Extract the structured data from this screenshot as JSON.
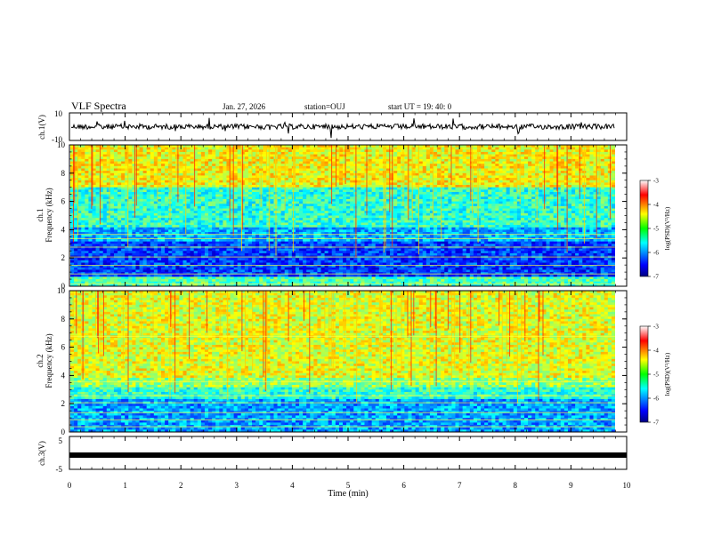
{
  "header": {
    "title": "VLF Spectra",
    "date": "Jan. 27, 2026",
    "station": "station=OUJ",
    "start_ut": "start  UT =  19: 40: 0"
  },
  "chart_data": [
    {
      "type": "line",
      "panel": "ch1-waveform",
      "ylabel": "ch.1(V)",
      "xlim": [
        0,
        10
      ],
      "ylim": [
        -10,
        10
      ],
      "yticks": [
        "10",
        "-10"
      ],
      "note_color": "#000000"
    },
    {
      "type": "heatmap",
      "panel": "ch1-spectrogram",
      "ylabel_line1": "ch.1",
      "ylabel_line2": "Frequency (kHz)",
      "xlim": [
        0,
        10
      ],
      "ylim": [
        0,
        10
      ],
      "yticks": [
        "0",
        "2",
        "4",
        "6",
        "8",
        "10"
      ],
      "colorbar": {
        "label": "log(PSD)(V²/Hz)",
        "range": [
          -7,
          -3
        ],
        "ticks": [
          "-3",
          "-4",
          "-5",
          "-6",
          "-7"
        ]
      }
    },
    {
      "type": "heatmap",
      "panel": "ch2-spectrogram",
      "ylabel_line1": "ch.2",
      "ylabel_line2": "Frequency (kHz)",
      "xlim": [
        0,
        10
      ],
      "ylim": [
        0,
        10
      ],
      "yticks": [
        "0",
        "2",
        "4",
        "6",
        "8",
        "10"
      ],
      "colorbar": {
        "label": "log(PSD)(V²/Hz)",
        "range": [
          -7,
          -3
        ],
        "ticks": [
          "-3",
          "-4",
          "-5",
          "-6",
          "-7"
        ]
      }
    },
    {
      "type": "line",
      "panel": "ch3-waveform",
      "ylabel": "ch.3(V)",
      "xlim": [
        0,
        10
      ],
      "ylim": [
        -5,
        5
      ],
      "yticks": [
        "5",
        "0",
        "-5"
      ],
      "xlabel": "Time (min)",
      "xticks": [
        "0",
        "1",
        "2",
        "3",
        "4",
        "5",
        "6",
        "7",
        "8",
        "9",
        "10"
      ],
      "constant_value": -1.5
    }
  ]
}
